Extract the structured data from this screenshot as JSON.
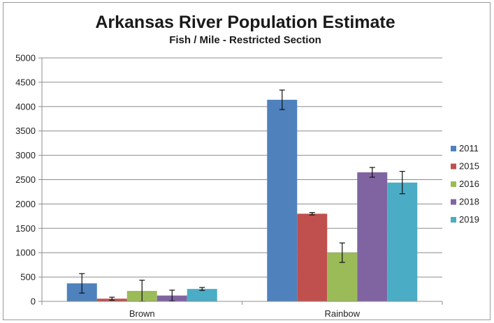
{
  "chart_data": {
    "type": "bar",
    "title": "Arkansas River Population Estimate",
    "subtitle": "Fish / Mile - Restricted Section",
    "xlabel": "",
    "ylabel": "",
    "categories": [
      "Brown",
      "Rainbow"
    ],
    "ylim": [
      0,
      5000
    ],
    "yticks": [
      0,
      500,
      1000,
      1500,
      2000,
      2500,
      3000,
      3500,
      4000,
      4500,
      5000
    ],
    "grid": true,
    "legend_position": "right",
    "error_bars": true,
    "series": [
      {
        "name": "2011",
        "color": "#4f81bd",
        "values": [
          370,
          4140
        ],
        "error": [
          200,
          200
        ]
      },
      {
        "name": "2015",
        "color": "#c0504d",
        "values": [
          55,
          1800
        ],
        "error": [
          30,
          25
        ]
      },
      {
        "name": "2016",
        "color": "#9bbb59",
        "values": [
          215,
          1000
        ],
        "error": [
          220,
          200
        ]
      },
      {
        "name": "2018",
        "color": "#8064a2",
        "values": [
          120,
          2650
        ],
        "error": [
          110,
          100
        ]
      },
      {
        "name": "2019",
        "color": "#4bacc6",
        "values": [
          255,
          2440
        ],
        "error": [
          30,
          230
        ]
      }
    ]
  }
}
